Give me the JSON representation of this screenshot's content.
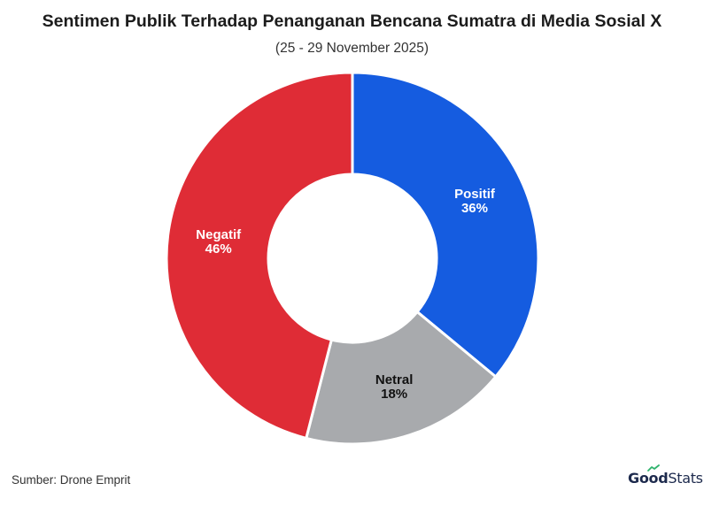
{
  "title": "Sentimen Publik Terhadap Penanganan Bencana Sumatra di Media Sosial X",
  "subtitle": "(25 - 29 November 2025)",
  "source": "Sumber: Drone Emprit",
  "logo": {
    "part1": "Good",
    "part2": "Stats"
  },
  "colors": {
    "positif": "#155ce0",
    "netral": "#a8aaad",
    "negatif": "#df2c36",
    "background": "#ffffff"
  },
  "chart_data": {
    "type": "pie",
    "variant": "donut",
    "slices": [
      {
        "label": "Positif",
        "value": 36,
        "display": "36%",
        "color": "#155ce0",
        "text_color": "#ffffff"
      },
      {
        "label": "Netral",
        "value": 18,
        "display": "18%",
        "color": "#a8aaad",
        "text_color": "#111111"
      },
      {
        "label": "Negatif",
        "value": 46,
        "display": "46%",
        "color": "#df2c36",
        "text_color": "#ffffff"
      }
    ]
  }
}
